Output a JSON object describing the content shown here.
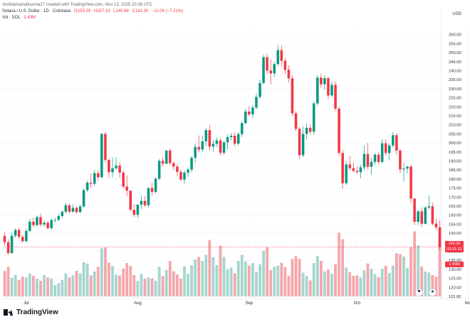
{
  "header": {
    "author_line": "shofiabinahatkusma27 created with TradingView.com, Nov 13, 2025 20:38 UTC",
    "symbol": "Solana / U.S. Dollar · 1D · Coinbase",
    "open": "O153.29",
    "high": "H157.19",
    "low": "L140.88",
    "close": "C142.30",
    "change": "−11.06 (−7.21%)",
    "vol_label": "Vol · SOL",
    "vol_value": "1.43M"
  },
  "currency": "USD",
  "price_badge": {
    "price": "142.30",
    "countdown": "03:21:22"
  },
  "volume_badge": "1.43M",
  "brand": "TradingView",
  "colors": {
    "up": "#089981",
    "down": "#f23645",
    "vol_up": "#a7d5cf",
    "vol_down": "#f5a7ab",
    "grid": "#f0f3fa"
  },
  "chart_data": {
    "type": "candlestick",
    "title": "Solana / U.S. Dollar · 1D · Coinbase",
    "y_range": [
      115,
      265
    ],
    "y_ticks": [
      115,
      120,
      125,
      130,
      135,
      140,
      145,
      150,
      155,
      160,
      165,
      170,
      175,
      180,
      185,
      190,
      195,
      200,
      205,
      210,
      215,
      220,
      225,
      230,
      235,
      240,
      245,
      250,
      255,
      260
    ],
    "x_labels": [
      {
        "label": "Jul",
        "index": 6
      },
      {
        "label": "Aug",
        "index": 37
      },
      {
        "label": "Sep",
        "index": 68
      },
      {
        "label": "Oct",
        "index": 98
      },
      {
        "label": "Nov",
        "index": 129
      }
    ],
    "candles": [
      [
        148.5,
        150.5,
        143.2,
        145.0
      ],
      [
        145.0,
        146.5,
        138.0,
        139.0
      ],
      [
        139.0,
        150.5,
        138.5,
        148.6
      ],
      [
        148.6,
        152.6,
        147.5,
        151.8
      ],
      [
        151.8,
        153.0,
        146.8,
        148.0
      ],
      [
        148.0,
        149.2,
        144.6,
        145.6
      ],
      [
        145.6,
        152.4,
        145.0,
        151.3
      ],
      [
        151.3,
        158.0,
        150.6,
        156.4
      ],
      [
        156.4,
        158.8,
        153.4,
        154.5
      ],
      [
        154.5,
        160.0,
        153.8,
        158.9
      ],
      [
        158.9,
        161.0,
        153.6,
        154.8
      ],
      [
        154.8,
        157.2,
        153.6,
        155.8
      ],
      [
        155.8,
        157.0,
        152.0,
        152.8
      ],
      [
        152.8,
        158.1,
        151.8,
        157.3
      ],
      [
        157.3,
        158.6,
        155.9,
        157.4
      ],
      [
        157.4,
        161.0,
        156.8,
        159.5
      ],
      [
        159.5,
        162.5,
        158.4,
        161.9
      ],
      [
        161.9,
        166.8,
        161.0,
        165.5
      ],
      [
        165.5,
        166.6,
        160.9,
        161.9
      ],
      [
        161.9,
        166.0,
        161.4,
        164.0
      ],
      [
        164.0,
        164.9,
        160.9,
        161.7
      ],
      [
        161.7,
        166.0,
        161.2,
        164.8
      ],
      [
        164.8,
        174.8,
        164.2,
        173.9
      ],
      [
        173.9,
        179.2,
        172.8,
        178.0
      ],
      [
        178.0,
        183.0,
        175.0,
        177.4
      ],
      [
        177.4,
        185.0,
        176.2,
        183.3
      ],
      [
        183.3,
        184.9,
        179.0,
        181.0
      ],
      [
        181.0,
        205.5,
        180.4,
        205.0
      ],
      [
        205.0,
        206.2,
        189.0,
        190.6
      ],
      [
        190.6,
        191.6,
        181.0,
        183.8
      ],
      [
        183.8,
        192.1,
        181.0,
        186.0
      ],
      [
        186.0,
        192.0,
        185.0,
        187.5
      ],
      [
        187.5,
        189.5,
        180.5,
        183.6
      ],
      [
        183.6,
        184.8,
        174.8,
        175.8
      ],
      [
        175.8,
        182.0,
        170.6,
        173.6
      ],
      [
        173.6,
        173.6,
        162.0,
        163.0
      ],
      [
        163.0,
        166.0,
        158.9,
        160.2
      ],
      [
        160.2,
        166.0,
        158.7,
        165.8
      ],
      [
        165.8,
        170.6,
        163.4,
        167.9
      ],
      [
        167.9,
        170.4,
        164.5,
        165.5
      ],
      [
        165.5,
        175.5,
        164.4,
        175.0
      ],
      [
        175.0,
        178.0,
        171.0,
        172.9
      ],
      [
        172.9,
        181.0,
        171.9,
        180.2
      ],
      [
        180.2,
        191.2,
        179.3,
        190.1
      ],
      [
        190.1,
        192.1,
        186.8,
        188.5
      ],
      [
        188.5,
        196.0,
        188.3,
        195.8
      ],
      [
        195.8,
        197.0,
        187.5,
        188.8
      ],
      [
        188.8,
        189.8,
        185.2,
        186.9
      ],
      [
        186.9,
        188.3,
        181.8,
        184.0
      ],
      [
        184.0,
        185.0,
        178.7,
        179.7
      ],
      [
        179.7,
        184.5,
        177.2,
        183.6
      ],
      [
        183.6,
        186.5,
        181.0,
        185.2
      ],
      [
        185.2,
        192.7,
        183.7,
        191.8
      ],
      [
        191.8,
        199.7,
        189.0,
        197.8
      ],
      [
        197.8,
        204.2,
        194.8,
        196.3
      ],
      [
        196.3,
        204.0,
        195.0,
        200.9
      ],
      [
        200.9,
        208.3,
        198.3,
        207.1
      ],
      [
        207.1,
        209.9,
        195.8,
        198.0
      ],
      [
        198.0,
        201.8,
        195.2,
        199.5
      ],
      [
        199.5,
        203.1,
        197.6,
        201.4
      ],
      [
        201.4,
        202.5,
        192.9,
        194.6
      ],
      [
        194.6,
        201.0,
        193.3,
        200.3
      ],
      [
        200.3,
        204.6,
        196.5,
        203.2
      ],
      [
        203.2,
        205.5,
        201.3,
        204.0
      ],
      [
        204.0,
        205.8,
        198.2,
        199.6
      ],
      [
        199.6,
        206.0,
        198.5,
        204.9
      ],
      [
        204.9,
        211.7,
        203.2,
        211.0
      ],
      [
        211.0,
        219.0,
        210.4,
        217.4
      ],
      [
        217.4,
        220.4,
        214.7,
        215.8
      ],
      [
        215.8,
        221.2,
        213.5,
        219.6
      ],
      [
        219.6,
        227.3,
        218.5,
        225.5
      ],
      [
        225.5,
        235.1,
        224.5,
        233.2
      ],
      [
        233.2,
        249.0,
        232.5,
        247.5
      ],
      [
        247.5,
        249.0,
        238.1,
        240.1
      ],
      [
        240.1,
        246.6,
        232.4,
        238.5
      ],
      [
        238.5,
        245.0,
        236.4,
        243.7
      ],
      [
        243.7,
        254.4,
        242.5,
        251.4
      ],
      [
        251.4,
        254.0,
        242.6,
        245.5
      ],
      [
        245.5,
        247.2,
        238.0,
        240.5
      ],
      [
        240.5,
        243.0,
        233.5,
        235.8
      ],
      [
        235.8,
        237.5,
        215.0,
        216.4
      ],
      [
        216.4,
        217.7,
        206.5,
        207.8
      ],
      [
        207.8,
        208.8,
        191.2,
        193.2
      ],
      [
        193.2,
        209.2,
        192.2,
        205.0
      ],
      [
        205.0,
        210.7,
        202.0,
        208.4
      ],
      [
        208.4,
        210.0,
        205.0,
        206.2
      ],
      [
        206.2,
        222.9,
        204.7,
        221.9
      ],
      [
        221.9,
        237.5,
        220.8,
        236.2
      ],
      [
        236.2,
        238.3,
        230.5,
        232.5
      ],
      [
        232.5,
        237.5,
        229.5,
        235.9
      ],
      [
        235.9,
        236.5,
        224.4,
        226.3
      ],
      [
        226.3,
        234.0,
        225.3,
        232.2
      ],
      [
        232.2,
        234.0,
        217.6,
        219.0
      ],
      [
        219.0,
        220.2,
        193.0,
        194.4
      ],
      [
        194.4,
        196.3,
        174.7,
        177.7
      ],
      [
        177.7,
        190.0,
        176.6,
        188.1
      ],
      [
        188.1,
        192.7,
        184.9,
        186.0
      ],
      [
        186.0,
        189.3,
        183.8,
        184.5
      ],
      [
        184.5,
        187.0,
        183.0,
        183.8
      ],
      [
        183.8,
        188.0,
        180.5,
        186.5
      ],
      [
        186.5,
        198.6,
        184.8,
        193.9
      ],
      [
        193.9,
        200.0,
        185.5,
        186.8
      ],
      [
        186.8,
        191.7,
        182.4,
        189.5
      ],
      [
        189.5,
        194.4,
        188.0,
        193.5
      ],
      [
        193.5,
        194.7,
        188.4,
        189.5
      ],
      [
        189.5,
        202.1,
        188.8,
        199.8
      ],
      [
        199.8,
        202.1,
        193.2,
        194.4
      ],
      [
        194.4,
        199.6,
        190.3,
        198.6
      ],
      [
        198.6,
        206.1,
        197.5,
        204.3
      ],
      [
        204.3,
        205.4,
        193.4,
        195.8
      ],
      [
        195.8,
        196.6,
        183.3,
        185.3
      ],
      [
        185.3,
        188.9,
        178.6,
        185.8
      ],
      [
        185.8,
        187.3,
        183.2,
        186.9
      ],
      [
        186.9,
        187.8,
        166.6,
        169.2
      ],
      [
        169.2,
        169.3,
        154.7,
        156.3
      ],
      [
        156.3,
        162.9,
        154.6,
        162.1
      ],
      [
        162.1,
        164.5,
        153.4,
        155.2
      ],
      [
        155.2,
        165.0,
        154.9,
        164.2
      ],
      [
        164.2,
        171.0,
        163.0,
        164.9
      ],
      [
        164.9,
        167.0,
        154.3,
        155.3
      ],
      [
        155.3,
        158.0,
        151.5,
        153.3
      ],
      [
        153.3,
        157.2,
        140.9,
        142.3
      ]
    ],
    "volumes": [
      0.62,
      0.72,
      0.45,
      0.52,
      0.4,
      0.48,
      0.46,
      0.56,
      0.5,
      0.43,
      0.38,
      0.52,
      0.46,
      0.43,
      0.27,
      0.32,
      0.4,
      0.56,
      0.46,
      0.51,
      0.62,
      0.56,
      0.83,
      0.8,
      0.51,
      0.61,
      0.72,
      1.17,
      1.19,
      0.82,
      0.74,
      0.53,
      0.51,
      0.68,
      0.81,
      0.74,
      0.52,
      0.37,
      0.55,
      0.43,
      0.46,
      0.44,
      0.38,
      0.72,
      0.49,
      0.64,
      0.86,
      0.61,
      0.53,
      0.43,
      0.73,
      0.55,
      0.76,
      0.9,
      0.96,
      0.86,
      1.01,
      1.37,
      0.95,
      0.76,
      1.23,
      0.96,
      0.66,
      0.7,
      0.56,
      0.86,
      1.01,
      0.85,
      0.75,
      0.81,
      0.59,
      0.78,
      1.11,
      1.2,
      0.64,
      0.72,
      0.75,
      0.82,
      0.71,
      0.5,
      0.91,
      0.98,
      0.91,
      0.58,
      0.5,
      0.39,
      0.81,
      0.98,
      0.86,
      0.61,
      0.65,
      0.55,
      0.78,
      1.55,
      1.39,
      0.7,
      0.59,
      0.5,
      0.51,
      0.46,
      0.63,
      0.8,
      0.67,
      0.54,
      0.47,
      0.67,
      0.74,
      0.57,
      0.75,
      1.05,
      1.03,
      0.97,
      0.69,
      1.19,
      1.58,
      1.24,
      0.73,
      0.61,
      0.58,
      0.52,
      0.48,
      1.43
    ]
  }
}
